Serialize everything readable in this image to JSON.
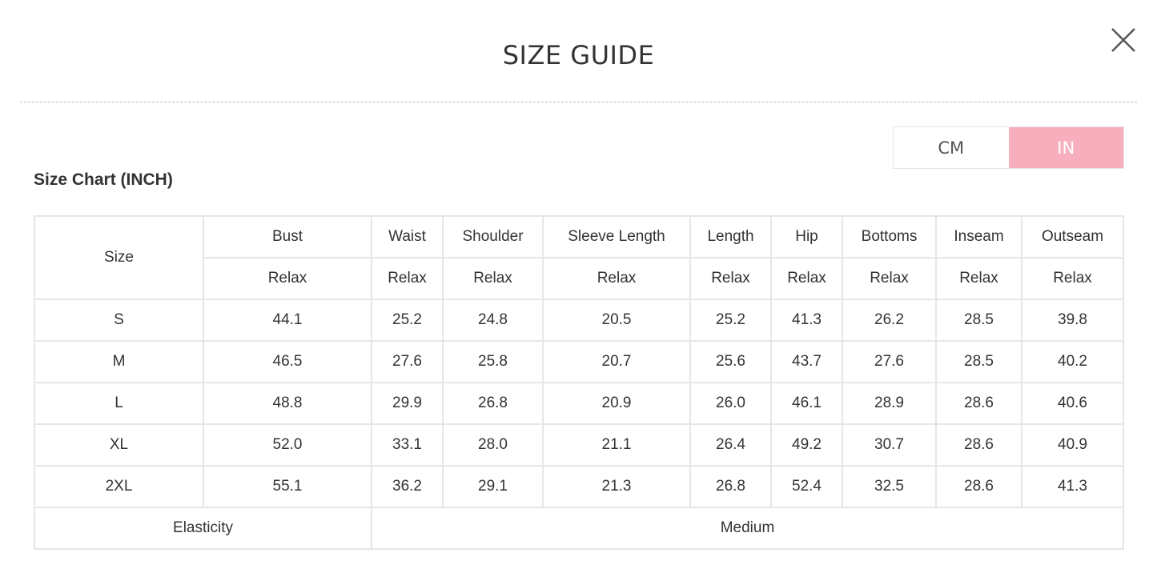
{
  "modal": {
    "title": "SIZE GUIDE",
    "close_icon": "close-icon"
  },
  "unit_toggle": {
    "cm": "CM",
    "in": "IN",
    "selected": "IN",
    "accent": "#f7aebd"
  },
  "chart": {
    "title": "Size Chart (INCH)",
    "size_header": "Size",
    "columns": [
      "Bust",
      "Waist",
      "Shoulder",
      "Sleeve Length",
      "Length",
      "Hip",
      "Bottoms",
      "Inseam",
      "Outseam"
    ],
    "subheaders": [
      "Relax",
      "Relax",
      "Relax",
      "Relax",
      "Relax",
      "Relax",
      "Relax",
      "Relax",
      "Relax"
    ],
    "rows": [
      {
        "size": "S",
        "values": [
          "44.1",
          "25.2",
          "24.8",
          "20.5",
          "25.2",
          "41.3",
          "26.2",
          "28.5",
          "39.8"
        ]
      },
      {
        "size": "M",
        "values": [
          "46.5",
          "27.6",
          "25.8",
          "20.7",
          "25.6",
          "43.7",
          "27.6",
          "28.5",
          "40.2"
        ]
      },
      {
        "size": "L",
        "values": [
          "48.8",
          "29.9",
          "26.8",
          "20.9",
          "26.0",
          "46.1",
          "28.9",
          "28.6",
          "40.6"
        ]
      },
      {
        "size": "XL",
        "values": [
          "52.0",
          "33.1",
          "28.0",
          "21.1",
          "26.4",
          "49.2",
          "30.7",
          "28.6",
          "40.9"
        ]
      },
      {
        "size": "2XL",
        "values": [
          "55.1",
          "36.2",
          "29.1",
          "21.3",
          "26.8",
          "52.4",
          "32.5",
          "28.6",
          "41.3"
        ]
      }
    ],
    "elasticity_label": "Elasticity",
    "elasticity_value": "Medium"
  }
}
